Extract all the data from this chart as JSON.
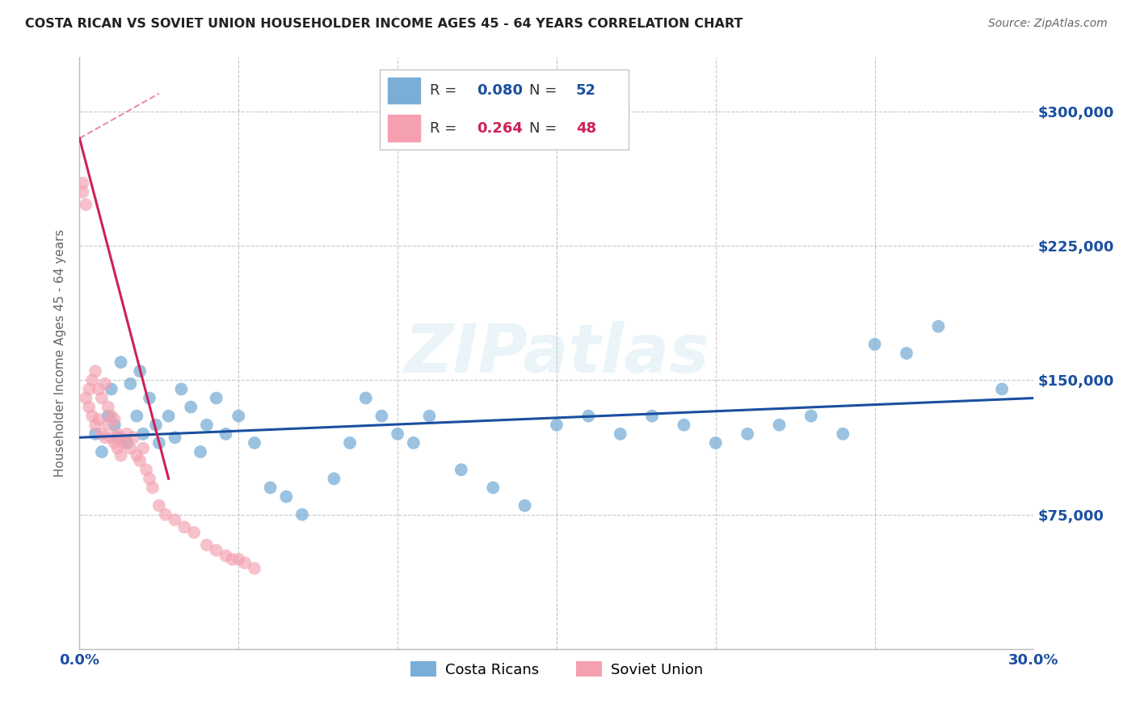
{
  "title": "COSTA RICAN VS SOVIET UNION HOUSEHOLDER INCOME AGES 45 - 64 YEARS CORRELATION CHART",
  "source": "Source: ZipAtlas.com",
  "ylabel": "Householder Income Ages 45 - 64 years",
  "xlim": [
    0.0,
    0.3
  ],
  "ylim": [
    0,
    330000
  ],
  "yticks": [
    0,
    75000,
    150000,
    225000,
    300000
  ],
  "background_color": "#ffffff",
  "grid_color": "#c8c8c8",
  "blue_color": "#7aaed6",
  "pink_color": "#f4a0b0",
  "blue_line_color": "#1a4fa0",
  "pink_line_color": "#cc2255",
  "legend_R_blue": "0.080",
  "legend_N_blue": "52",
  "legend_R_pink": "0.264",
  "legend_N_pink": "48",
  "watermark": "ZIPatlas",
  "blue_x": [
    0.005,
    0.007,
    0.009,
    0.01,
    0.011,
    0.012,
    0.013,
    0.015,
    0.016,
    0.018,
    0.019,
    0.02,
    0.022,
    0.024,
    0.025,
    0.028,
    0.03,
    0.032,
    0.035,
    0.038,
    0.04,
    0.043,
    0.046,
    0.05,
    0.055,
    0.06,
    0.065,
    0.07,
    0.08,
    0.085,
    0.09,
    0.095,
    0.1,
    0.105,
    0.11,
    0.12,
    0.13,
    0.14,
    0.15,
    0.16,
    0.17,
    0.18,
    0.19,
    0.2,
    0.21,
    0.22,
    0.23,
    0.24,
    0.25,
    0.26,
    0.27,
    0.29
  ],
  "blue_y": [
    120000,
    110000,
    130000,
    145000,
    125000,
    118000,
    160000,
    115000,
    148000,
    130000,
    155000,
    120000,
    140000,
    125000,
    115000,
    130000,
    118000,
    145000,
    135000,
    110000,
    125000,
    140000,
    120000,
    130000,
    115000,
    90000,
    85000,
    75000,
    95000,
    115000,
    140000,
    130000,
    120000,
    115000,
    130000,
    100000,
    90000,
    80000,
    125000,
    130000,
    120000,
    130000,
    125000,
    115000,
    120000,
    125000,
    130000,
    120000,
    170000,
    165000,
    180000,
    145000
  ],
  "pink_x": [
    0.001,
    0.001,
    0.002,
    0.002,
    0.003,
    0.003,
    0.004,
    0.004,
    0.005,
    0.005,
    0.006,
    0.006,
    0.007,
    0.007,
    0.008,
    0.008,
    0.009,
    0.009,
    0.01,
    0.01,
    0.011,
    0.011,
    0.012,
    0.012,
    0.013,
    0.013,
    0.014,
    0.015,
    0.016,
    0.017,
    0.018,
    0.019,
    0.02,
    0.021,
    0.022,
    0.023,
    0.025,
    0.027,
    0.03,
    0.033,
    0.036,
    0.04,
    0.043,
    0.046,
    0.048,
    0.05,
    0.052,
    0.055
  ],
  "pink_y": [
    255000,
    260000,
    248000,
    140000,
    145000,
    135000,
    150000,
    130000,
    155000,
    125000,
    145000,
    128000,
    140000,
    120000,
    148000,
    118000,
    135000,
    125000,
    130000,
    118000,
    128000,
    115000,
    120000,
    112000,
    118000,
    108000,
    115000,
    120000,
    112000,
    118000,
    108000,
    105000,
    112000,
    100000,
    95000,
    90000,
    80000,
    75000,
    72000,
    68000,
    65000,
    58000,
    55000,
    52000,
    50000,
    50000,
    48000,
    45000
  ]
}
